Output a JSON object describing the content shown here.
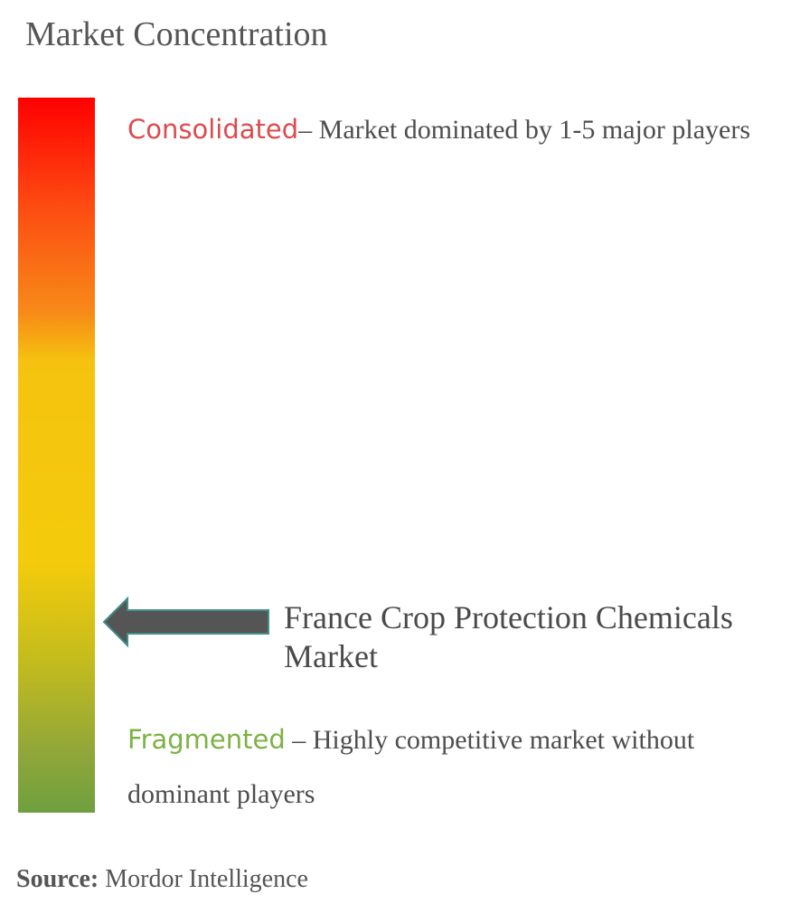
{
  "title": "Market Concentration",
  "consolidated": {
    "keyword": "Consolidated",
    "description": "– Market dominated by 1-5 major players",
    "color": "#dc4b4e"
  },
  "fragmented": {
    "keyword": "Fragmented",
    "description": " – Highly competitive market without dominant players",
    "color": "#7cb244"
  },
  "market_label": "France Crop Protection Chemicals Market",
  "source": {
    "label": "Source:",
    "value": " Mordor Intelligence"
  },
  "chart_data": {
    "type": "gauge",
    "scale_ends": [
      "Consolidated",
      "Fragmented"
    ],
    "scale_colors": [
      "#ff0000",
      "#f78a18",
      "#f4cb0c",
      "#6ea03f"
    ],
    "indicator_label": "France Crop Protection Chemicals Market",
    "indicator_position_from_fragmented_end": 0.27
  }
}
